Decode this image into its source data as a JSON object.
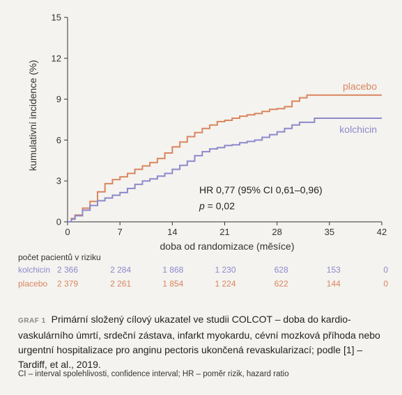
{
  "chart_data": {
    "type": "line",
    "ylabel": "kumulativní incidence (%)",
    "xlabel": "doba od randomizace (měsíce)",
    "xlim": [
      0,
      42
    ],
    "ylim": [
      0,
      15
    ],
    "x_ticks": [
      0,
      7,
      14,
      21,
      28,
      35,
      42
    ],
    "y_ticks": [
      0,
      3,
      6,
      9,
      12,
      15
    ],
    "grid": false,
    "series": [
      {
        "name": "placebo",
        "color": "#d9855f",
        "points": [
          [
            0,
            0
          ],
          [
            0.5,
            0.25
          ],
          [
            1,
            0.5
          ],
          [
            2,
            1.0
          ],
          [
            3,
            1.5
          ],
          [
            4,
            2.2
          ],
          [
            5,
            2.8
          ],
          [
            6,
            3.1
          ],
          [
            7,
            3.3
          ],
          [
            8,
            3.55
          ],
          [
            9,
            3.85
          ],
          [
            10,
            4.1
          ],
          [
            11,
            4.35
          ],
          [
            12,
            4.65
          ],
          [
            13,
            5.05
          ],
          [
            14,
            5.5
          ],
          [
            15,
            5.85
          ],
          [
            16,
            6.25
          ],
          [
            17,
            6.55
          ],
          [
            18,
            6.85
          ],
          [
            19,
            7.1
          ],
          [
            20,
            7.35
          ],
          [
            21,
            7.45
          ],
          [
            22,
            7.6
          ],
          [
            23,
            7.75
          ],
          [
            24,
            7.85
          ],
          [
            25,
            7.95
          ],
          [
            26,
            8.1
          ],
          [
            27,
            8.25
          ],
          [
            28,
            8.3
          ],
          [
            29,
            8.45
          ],
          [
            30,
            8.85
          ],
          [
            31,
            9.1
          ],
          [
            32,
            9.3
          ],
          [
            42,
            9.3
          ]
        ]
      },
      {
        "name": "kolchicin",
        "color": "#8c89cc",
        "points": [
          [
            0,
            0
          ],
          [
            0.5,
            0.2
          ],
          [
            1,
            0.45
          ],
          [
            2,
            0.85
          ],
          [
            3,
            1.2
          ],
          [
            4,
            1.55
          ],
          [
            5,
            1.75
          ],
          [
            6,
            1.95
          ],
          [
            7,
            2.15
          ],
          [
            8,
            2.45
          ],
          [
            9,
            2.75
          ],
          [
            10,
            3.0
          ],
          [
            11,
            3.15
          ],
          [
            12,
            3.35
          ],
          [
            13,
            3.55
          ],
          [
            14,
            3.85
          ],
          [
            15,
            4.15
          ],
          [
            16,
            4.45
          ],
          [
            17,
            4.85
          ],
          [
            18,
            5.15
          ],
          [
            19,
            5.35
          ],
          [
            20,
            5.45
          ],
          [
            21,
            5.6
          ],
          [
            22,
            5.65
          ],
          [
            23,
            5.8
          ],
          [
            24,
            5.9
          ],
          [
            25,
            6.0
          ],
          [
            26,
            6.2
          ],
          [
            27,
            6.4
          ],
          [
            28,
            6.6
          ],
          [
            29,
            6.85
          ],
          [
            30,
            7.1
          ],
          [
            31,
            7.3
          ],
          [
            33,
            7.6
          ],
          [
            42,
            7.6
          ]
        ]
      }
    ],
    "annotations": {
      "hr": "HR 0,77 (95% CI 0,61–0,96)",
      "p_italic": "p",
      "p_rest": " = 0,02"
    },
    "risk_table": {
      "title": "počet pacientů v riziku",
      "rows": [
        {
          "label": "kolchicin",
          "color": "#8c89cc",
          "values": [
            "2 366",
            "2 284",
            "1 868",
            "1 230",
            "628",
            "153",
            "0"
          ]
        },
        {
          "label": "placebo",
          "color": "#d9855f",
          "values": [
            "2 379",
            "2 261",
            "1 854",
            "1 224",
            "622",
            "144",
            "0"
          ]
        }
      ]
    }
  },
  "caption": {
    "label": "GRAF 1",
    "text": "Primární složený cílový ukazatel ve studii COLCOT – doba do kardio-vaskulárního úmrtí, srdeční zástava, infarkt myokardu, cévní mozková příhoda nebo urgentní hospitalizace pro anginu pectoris ukončená revaskularizací; podle [1] – Tardiff, et al., 2019."
  },
  "footnote": "CI – interval spolehlivosti, confidence interval; HR – poměr rizik, hazard ratio"
}
